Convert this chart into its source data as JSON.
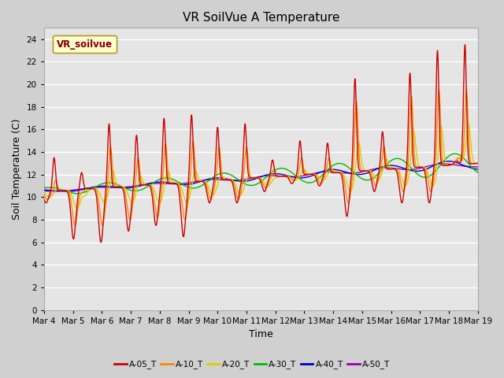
{
  "title": "VR SoilVue A Temperature",
  "xlabel": "Time",
  "ylabel": "Soil Temperature (C)",
  "ylim": [
    0,
    25
  ],
  "yticks": [
    0,
    2,
    4,
    6,
    8,
    10,
    12,
    14,
    16,
    18,
    20,
    22,
    24
  ],
  "xtick_labels": [
    "Mar 4",
    "Mar 5",
    "Mar 6",
    "Mar 7",
    "Mar 8",
    "Mar 9",
    "Mar 10",
    "Mar 11",
    "Mar 12",
    "Mar 13",
    "Mar 14",
    "Mar 15",
    "Mar 16",
    "Mar 17",
    "Mar 18",
    "Mar 19"
  ],
  "series_labels": [
    "A-05_T",
    "A-10_T",
    "A-20_T",
    "A-30_T",
    "A-40_T",
    "A-50_T"
  ],
  "series_colors": [
    "#cc0000",
    "#ff8800",
    "#ddcc00",
    "#00bb00",
    "#0000cc",
    "#9900aa"
  ],
  "legend_label": "VR_soilvue",
  "bg_color": "#e5e5e5",
  "grid_color": "#ffffff",
  "title_fontsize": 11,
  "axis_fontsize": 9,
  "tick_fontsize": 7.5
}
